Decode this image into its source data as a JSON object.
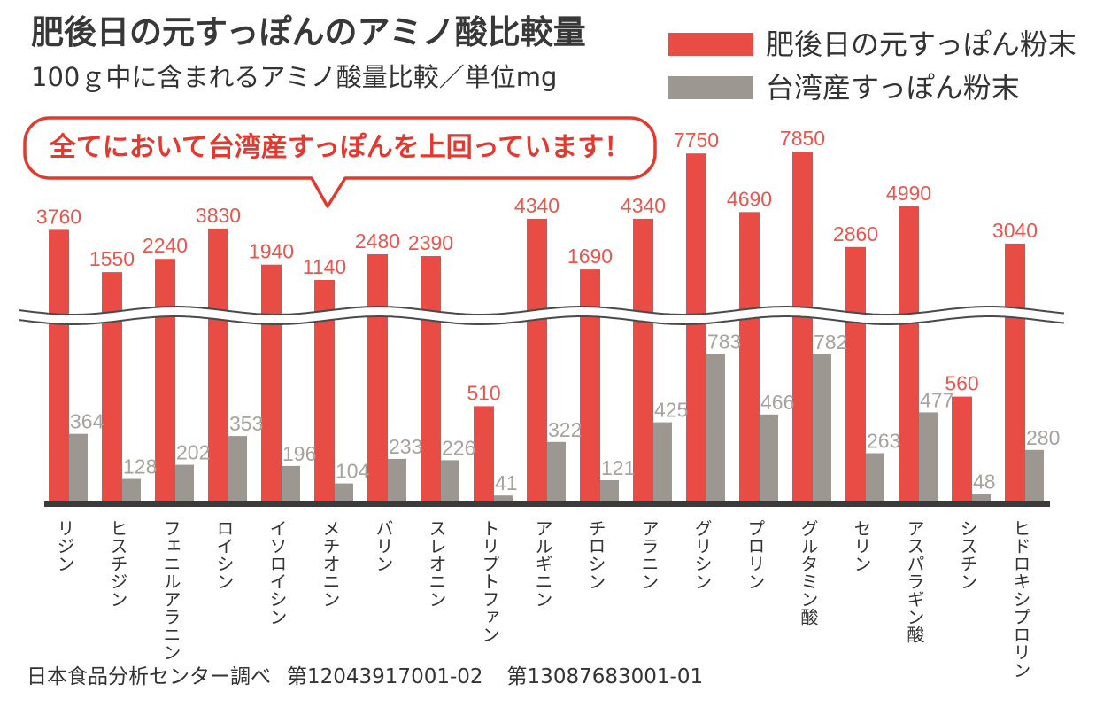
{
  "chart_data": {
    "type": "bar",
    "title": "肥後日の元すっぽんのアミノ酸比較量",
    "subtitle": "100ｇ中に含まれるアミノ酸量比較／単位mg",
    "annotation": "全てにおいて台湾産すっぽんを上回っています！",
    "axis_break": true,
    "categories": [
      "リジン",
      "ヒスチジン",
      "フェニルアラニン",
      "ロイシン",
      "イソロイシン",
      "メチオニン",
      "バリン",
      "スレオニン",
      "トリプトファン",
      "アルギニン",
      "チロシン",
      "アラニン",
      "グリシン",
      "プロリン",
      "グルタミン酸",
      "セリン",
      "アスパラギン酸",
      "シスチン",
      "ヒドロキシプロリン"
    ],
    "series": [
      {
        "name": "肥後日の元すっぽん粉末",
        "color": "#e84c45",
        "values": [
          3760,
          1550,
          2240,
          3830,
          1940,
          1140,
          2480,
          2390,
          510,
          4340,
          1690,
          4340,
          7750,
          4690,
          7850,
          2860,
          4990,
          560,
          3040
        ]
      },
      {
        "name": "台湾産すっぽん粉末",
        "color": "#9c9791",
        "values": [
          364,
          128,
          202,
          353,
          196,
          104,
          233,
          226,
          41,
          322,
          121,
          425,
          783,
          466,
          782,
          263,
          477,
          48,
          280
        ]
      }
    ]
  },
  "footer": {
    "source": "日本食品分析センター調べ",
    "report_1": "第12043917001-02",
    "report_2": "第13087683001-01"
  },
  "colors": {
    "callout": "#e3392f",
    "baseline": "#3b3b3b",
    "break_line": "#4a4a4a"
  }
}
